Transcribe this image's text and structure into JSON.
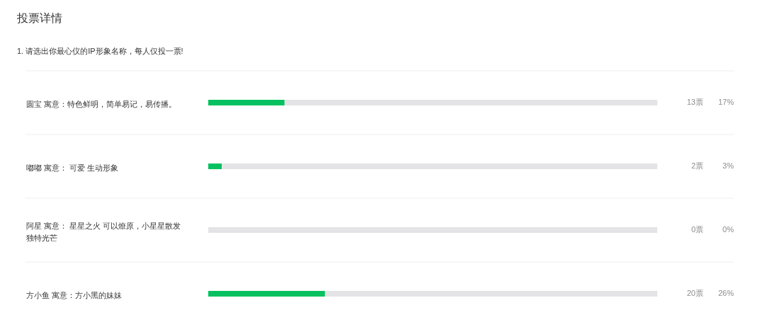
{
  "chart_data": {
    "type": "bar",
    "orientation": "horizontal",
    "stacked": true,
    "title": "投票详情",
    "subtitle": "1. 请选出你最心仪的IP形象名称，每人仅投一票!",
    "categories": [
      "圆宝 寓意：特色鲜明，简单易记，易传播。",
      "嘟嘟 寓意： 可爱 生动形象",
      "阿星 寓意： 星星之火 可以燎原，小星星散发独特光芒",
      "方小鱼 寓意：方小黑的妹妹"
    ],
    "series": [
      {
        "color": "#07c160",
        "values": [
          17,
          3,
          0,
          26
        ],
        "value_labels": [
          "17%",
          "3%",
          "0%",
          "26%"
        ]
      },
      {
        "color": "#e4e4e6",
        "values": [
          83,
          97,
          100,
          74
        ]
      }
    ],
    "xlim": [
      0,
      100
    ],
    "tick_labels": "y",
    "grid": "y",
    "annotations": [
      "13票",
      "2票",
      "0票",
      "20票"
    ]
  }
}
